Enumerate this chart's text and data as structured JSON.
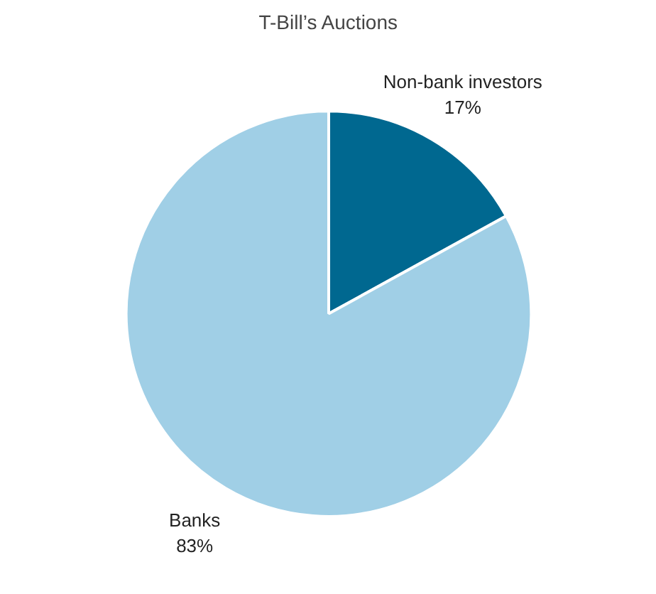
{
  "chart_data": {
    "type": "pie",
    "title": "T-Bill’s Auctions",
    "categories": [
      "Non-bank investors",
      "Banks"
    ],
    "values": [
      17,
      83
    ],
    "value_labels": [
      "17%",
      "83%"
    ],
    "colors": [
      "#006890",
      "#a0cfe6"
    ],
    "legend": false
  }
}
